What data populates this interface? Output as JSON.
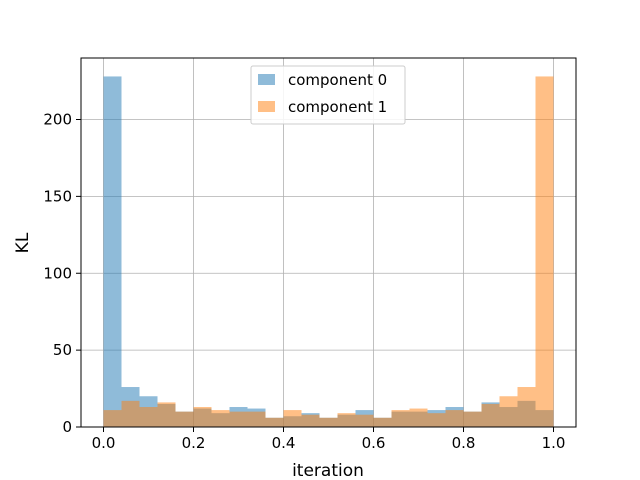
{
  "chart_data": {
    "type": "histogram",
    "xlabel": "iteration",
    "ylabel": "KL",
    "xlim": [
      -0.05,
      1.05
    ],
    "ylim": [
      0,
      240
    ],
    "xticks": [
      "0.0",
      "0.2",
      "0.4",
      "0.6",
      "0.8",
      "1.0"
    ],
    "yticks": [
      "0",
      "50",
      "100",
      "150",
      "200"
    ],
    "grid": true,
    "legend_position": "top-center",
    "bins": [
      0.0,
      0.04,
      0.08,
      0.12,
      0.16,
      0.2,
      0.24,
      0.28,
      0.32,
      0.36,
      0.4,
      0.44,
      0.48,
      0.52,
      0.56,
      0.6,
      0.64,
      0.68,
      0.72,
      0.76,
      0.8,
      0.84,
      0.88,
      0.92,
      0.96,
      1.0
    ],
    "series": [
      {
        "name": "component 0",
        "color": "#1f77b4",
        "opacity": 0.5,
        "values": [
          228,
          26,
          20,
          15,
          10,
          12,
          9,
          13,
          12,
          6,
          7,
          9,
          6,
          8,
          11,
          6,
          10,
          10,
          11,
          13,
          10,
          16,
          13,
          17,
          11
        ]
      },
      {
        "name": "component 1",
        "color": "#ff7f0e",
        "opacity": 0.5,
        "values": [
          11,
          17,
          13,
          16,
          10,
          13,
          11,
          10,
          10,
          6,
          11,
          8,
          6,
          9,
          8,
          6,
          11,
          12,
          9,
          11,
          10,
          15,
          20,
          26,
          228
        ]
      }
    ]
  }
}
